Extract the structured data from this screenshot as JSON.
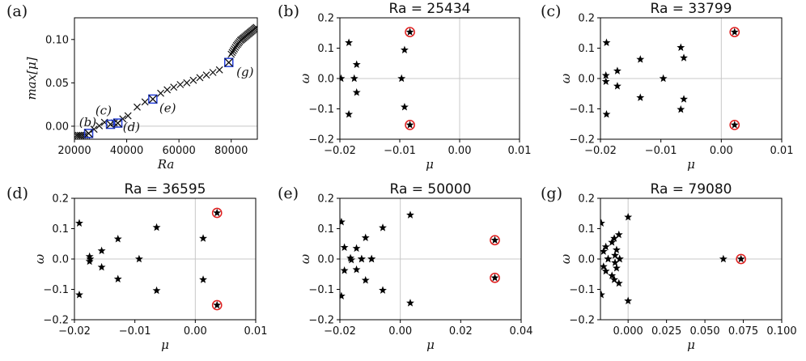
{
  "chart_data": [
    {
      "id": "a",
      "type": "scatter",
      "panel_label": "(a)",
      "title": "",
      "xlabel": "Ra",
      "ylabel": "max[μ]",
      "xlim": [
        20000,
        90000
      ],
      "ylim": [
        -0.015,
        0.125
      ],
      "xticks": [
        20000,
        40000,
        60000,
        80000
      ],
      "xtick_labels": [
        "20000",
        "40000",
        "60000",
        "80000"
      ],
      "yticks": [
        0.0,
        0.05,
        0.1
      ],
      "ytick_labels": [
        "0.00",
        "0.05",
        "0.10"
      ],
      "zero_lines": {
        "x": null,
        "y": 0
      },
      "series": [
        {
          "name": "max growth rate",
          "marker": "x",
          "x": [
            20800,
            21500,
            22200,
            23000,
            23800,
            24600,
            25434,
            27500,
            29500,
            31500,
            33799,
            35200,
            36595,
            38500,
            40500,
            44000,
            47000,
            50000,
            53000,
            55500,
            58000,
            60500,
            63000,
            65500,
            68000,
            70500,
            73000,
            75500,
            79080,
            80000,
            80400,
            80800,
            81200,
            81600,
            82000,
            82400,
            82800,
            83200,
            83600,
            84000,
            84400,
            84800,
            85200,
            85600,
            86000,
            86400,
            86800,
            87200,
            87600,
            88000,
            88400,
            88800,
            89200,
            89600
          ],
          "y": [
            -0.0105,
            -0.0105,
            -0.0105,
            -0.0105,
            -0.0105,
            -0.0105,
            -0.0083,
            -0.0035,
            0.0005,
            0.0045,
            0.0022,
            0.0038,
            0.0036,
            0.0085,
            0.012,
            0.022,
            0.028,
            0.0313,
            0.038,
            0.042,
            0.045,
            0.048,
            0.05,
            0.053,
            0.056,
            0.059,
            0.062,
            0.065,
            0.0735,
            0.083,
            0.085,
            0.087,
            0.089,
            0.091,
            0.093,
            0.0945,
            0.096,
            0.0975,
            0.099,
            0.1,
            0.101,
            0.102,
            0.103,
            0.104,
            0.105,
            0.106,
            0.107,
            0.108,
            0.109,
            0.11,
            0.111,
            0.112,
            0.113,
            0.114
          ]
        },
        {
          "name": "selected cases",
          "marker": "boxed-x",
          "x": [
            25434,
            33799,
            36595,
            50000,
            79080
          ],
          "y": [
            -0.0083,
            0.0022,
            0.0036,
            0.0313,
            0.0735
          ]
        }
      ],
      "annotations": [
        {
          "text": "(b)",
          "x": 21800,
          "y": 0.0
        },
        {
          "text": "(c)",
          "x": 28000,
          "y": 0.0135
        },
        {
          "text": "(d)",
          "x": 38500,
          "y": -0.0055
        },
        {
          "text": "(e)",
          "x": 52500,
          "y": 0.0165
        },
        {
          "text": "(g)",
          "x": 82000,
          "y": 0.058
        }
      ]
    },
    {
      "id": "b",
      "type": "scatter",
      "panel_label": "(b)",
      "title": "Ra = 25434",
      "xlabel": "μ",
      "ylabel": "ω",
      "xlim": [
        -0.02,
        0.01
      ],
      "ylim": [
        -0.2,
        0.2
      ],
      "xticks": [
        -0.02,
        -0.01,
        0.0,
        0.01
      ],
      "xtick_labels": [
        "−0.02",
        "−0.01",
        "0.00",
        "0.01"
      ],
      "yticks": [
        -0.2,
        -0.1,
        0.0,
        0.1,
        0.2
      ],
      "ytick_labels": [
        "−0.2",
        "−0.1",
        "0.0",
        "0.1",
        "0.2"
      ],
      "zero_lines": {
        "x": 0,
        "y": 0
      },
      "series": [
        {
          "name": "eigenvalues",
          "marker": "star",
          "x": [
            -0.0185,
            -0.0172,
            -0.0198,
            -0.0176,
            -0.0172,
            -0.0185,
            -0.0092,
            -0.0097,
            -0.0092,
            -0.0083,
            -0.0083
          ],
          "y": [
            0.118,
            0.046,
            0.0,
            0.0,
            -0.046,
            -0.118,
            0.094,
            0.0,
            -0.094,
            0.153,
            -0.153
          ]
        },
        {
          "name": "leading eigenvalues",
          "marker": "circle",
          "x": [
            -0.0083,
            -0.0083
          ],
          "y": [
            0.153,
            -0.153
          ]
        }
      ]
    },
    {
      "id": "c",
      "type": "scatter",
      "panel_label": "(c)",
      "title": "Ra = 33799",
      "xlabel": "μ",
      "ylabel": "ω",
      "xlim": [
        -0.02,
        0.01
      ],
      "ylim": [
        -0.2,
        0.2
      ],
      "xticks": [
        -0.02,
        -0.01,
        0.0,
        0.01
      ],
      "xtick_labels": [
        "−0.02",
        "−0.01",
        "0.00",
        "0.01"
      ],
      "yticks": [
        -0.2,
        -0.1,
        0.0,
        0.1,
        0.2
      ],
      "ytick_labels": [
        "−0.2",
        "−0.1",
        "0.0",
        "0.1",
        "0.2"
      ],
      "zero_lines": {
        "x": 0,
        "y": 0
      },
      "series": [
        {
          "name": "eigenvalues",
          "marker": "star",
          "x": [
            -0.019,
            -0.0191,
            -0.0191,
            -0.019,
            -0.0172,
            -0.0172,
            -0.0134,
            -0.0134,
            -0.0096,
            -0.0067,
            -0.0067,
            -0.0062,
            -0.0062,
            0.0022,
            0.0022
          ],
          "y": [
            0.118,
            0.01,
            -0.01,
            -0.118,
            0.025,
            -0.025,
            0.063,
            -0.063,
            0.0,
            0.102,
            -0.102,
            0.068,
            -0.068,
            0.153,
            -0.153
          ]
        },
        {
          "name": "leading eigenvalues",
          "marker": "circle",
          "x": [
            0.0022,
            0.0022
          ],
          "y": [
            0.153,
            -0.153
          ]
        }
      ]
    },
    {
      "id": "d",
      "type": "scatter",
      "panel_label": "(d)",
      "title": "Ra = 36595",
      "xlabel": "μ",
      "ylabel": "ω",
      "xlim": [
        -0.02,
        0.01
      ],
      "ylim": [
        -0.2,
        0.2
      ],
      "xticks": [
        -0.02,
        -0.01,
        0.0,
        0.01
      ],
      "xtick_labels": [
        "−0.02",
        "−0.01",
        "0.00",
        "0.01"
      ],
      "yticks": [
        -0.2,
        -0.1,
        0.0,
        0.1,
        0.2
      ],
      "ytick_labels": [
        "−0.2",
        "−0.1",
        "0.0",
        "0.1",
        "0.2"
      ],
      "zero_lines": {
        "x": 0,
        "y": 0
      },
      "series": [
        {
          "name": "eigenvalues",
          "marker": "star",
          "x": [
            -0.0192,
            -0.0192,
            -0.0175,
            -0.0175,
            -0.0174,
            -0.0155,
            -0.0155,
            -0.0128,
            -0.0128,
            -0.0093,
            -0.0064,
            -0.0064,
            0.0013,
            0.0013,
            0.0036,
            0.0036
          ],
          "y": [
            0.118,
            -0.118,
            0.008,
            -0.008,
            0.0,
            0.027,
            -0.027,
            0.066,
            -0.066,
            0.0,
            0.104,
            -0.104,
            0.068,
            -0.068,
            0.152,
            -0.152
          ]
        },
        {
          "name": "leading eigenvalues",
          "marker": "circle",
          "x": [
            0.0036,
            0.0036
          ],
          "y": [
            0.152,
            -0.152
          ]
        }
      ]
    },
    {
      "id": "e",
      "type": "scatter",
      "panel_label": "(e)",
      "title": "Ra = 50000",
      "xlabel": "μ",
      "ylabel": "ω",
      "xlim": [
        -0.02,
        0.04
      ],
      "ylim": [
        -0.2,
        0.2
      ],
      "xticks": [
        -0.02,
        0.0,
        0.02,
        0.04
      ],
      "xtick_labels": [
        "−0.02",
        "0.00",
        "0.02",
        "0.04"
      ],
      "yticks": [
        -0.2,
        -0.1,
        0.0,
        0.1,
        0.2
      ],
      "ytick_labels": [
        "−0.2",
        "−0.1",
        "0.0",
        "0.1",
        "0.2"
      ],
      "zero_lines": {
        "x": 0,
        "y": 0
      },
      "series": [
        {
          "name": "eigenvalues",
          "marker": "star",
          "x": [
            -0.0195,
            -0.0195,
            -0.0185,
            -0.0185,
            -0.0165,
            -0.0162,
            -0.0145,
            -0.0145,
            -0.0128,
            -0.0128,
            -0.0115,
            -0.0115,
            -0.0095,
            -0.0095,
            -0.0058,
            -0.0058,
            0.0033,
            0.0033,
            0.0313,
            0.0313
          ],
          "y": [
            0.122,
            -0.122,
            0.038,
            -0.038,
            0.003,
            -0.003,
            0.035,
            -0.035,
            0.0,
            0.0,
            0.07,
            -0.07,
            0.0,
            0.0,
            0.103,
            -0.103,
            0.145,
            -0.145,
            0.062,
            -0.062
          ]
        },
        {
          "name": "leading eigenvalues",
          "marker": "circle",
          "x": [
            0.0313,
            0.0313
          ],
          "y": [
            0.062,
            -0.062
          ]
        }
      ]
    },
    {
      "id": "g",
      "type": "scatter",
      "panel_label": "(g)",
      "title": "Ra = 79080",
      "xlabel": "μ",
      "ylabel": "ω",
      "xlim": [
        -0.018,
        0.1
      ],
      "ylim": [
        -0.2,
        0.2
      ],
      "xticks": [
        0.0,
        0.025,
        0.05,
        0.075,
        0.1
      ],
      "xtick_labels": [
        "0.000",
        "0.025",
        "0.050",
        "0.075",
        "0.100"
      ],
      "yticks": [
        -0.2,
        -0.1,
        0.0,
        0.1,
        0.2
      ],
      "ytick_labels": [
        "−0.2",
        "−0.1",
        "0.0",
        "0.1",
        "0.2"
      ],
      "zero_lines": {
        "x": 0,
        "y": 0
      },
      "series": [
        {
          "name": "eigenvalues",
          "marker": "star",
          "x": [
            -0.0175,
            -0.0175,
            -0.016,
            -0.016,
            -0.0145,
            -0.0145,
            -0.013,
            -0.013,
            -0.0105,
            -0.0105,
            -0.009,
            -0.009,
            -0.0085,
            -0.0085,
            -0.0075,
            -0.0075,
            -0.006,
            -0.006,
            -0.0055,
            -0.0055,
            0.0,
            0.0,
            0.062,
            0.0735
          ],
          "y": [
            0.118,
            -0.118,
            0.025,
            -0.025,
            0.04,
            -0.04,
            0.0,
            0.0,
            0.055,
            -0.055,
            0.068,
            -0.068,
            0.012,
            -0.012,
            0.03,
            -0.03,
            0.08,
            -0.08,
            0.0,
            0.0,
            0.138,
            -0.138,
            0.0,
            0.0
          ]
        },
        {
          "name": "leading eigenvalues",
          "marker": "circle",
          "x": [
            0.0735
          ],
          "y": [
            0.0
          ]
        }
      ]
    }
  ]
}
